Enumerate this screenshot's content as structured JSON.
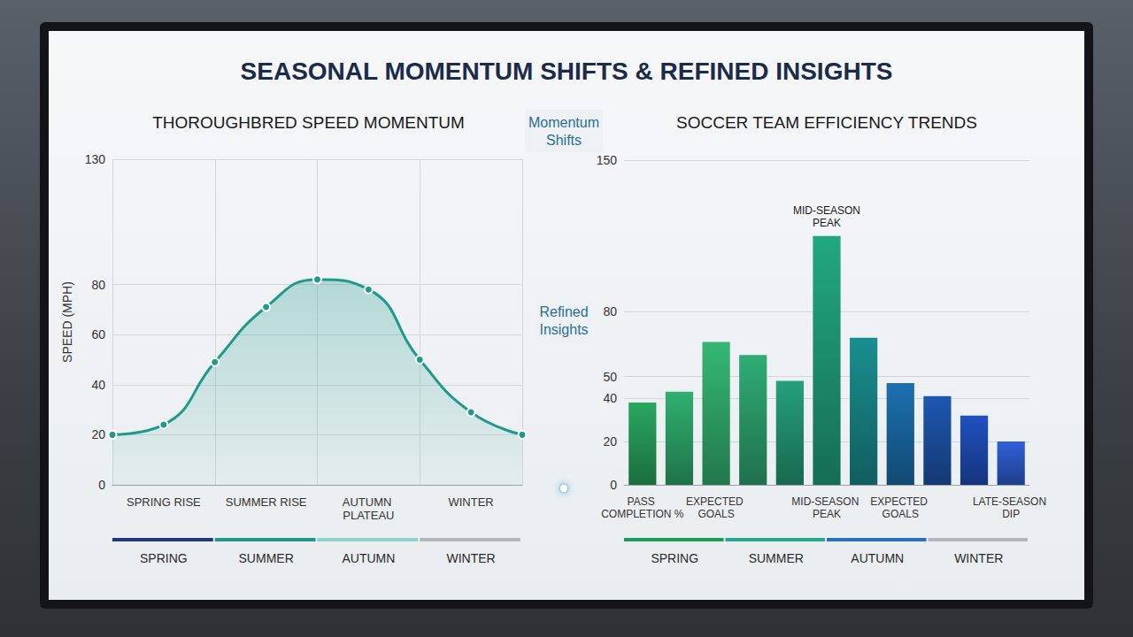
{
  "title": "SEASONAL MOMENTUM SHIFTS & REFINED INSIGHTS",
  "center_labels": [
    "Momentum Shifts",
    "Refined Insights"
  ],
  "chart_data": [
    {
      "type": "line",
      "title": "THOROUGHBRED SPEED MOMENTUM",
      "ylabel": "SPEED (MPH)",
      "categories": [
        null,
        "SPRING RISE",
        null,
        "SUMMER RISE",
        null,
        "AUTUMN PLATEAU",
        null,
        "WINTER",
        null
      ],
      "values": [
        20,
        24,
        49,
        71,
        82,
        78,
        50,
        29,
        20
      ],
      "color": "#1e9a8a",
      "marker": "circle",
      "ylim": [
        0,
        130
      ],
      "yticks": [
        0,
        20,
        40,
        60,
        80,
        130
      ],
      "grid": true,
      "season_labels": [
        "SPRING",
        "SUMMER",
        "AUTUMN",
        "WINTER"
      ]
    },
    {
      "type": "bar",
      "title": "SOCCER TEAM EFFICIENCY TRENDS",
      "categories": [
        "PASS COMPLETION %",
        null,
        "EXPECTED GOALS",
        null,
        null,
        "MID-SEASON PEAK",
        null,
        "EXPECTED GOALS",
        null,
        null,
        "LATE-SEASON DIP"
      ],
      "values": [
        38,
        43,
        66,
        60,
        48,
        115,
        68,
        47,
        41,
        32,
        20
      ],
      "colors": [
        "#2aa860",
        "#30b070",
        "#35b873",
        "#2fad75",
        "#25a07a",
        "#22a880",
        "#1a8f90",
        "#1c70b0",
        "#1e58b0",
        "#2050c0",
        "#3060d8"
      ],
      "ylim": [
        0,
        150
      ],
      "yticks": [
        0,
        20,
        40,
        50,
        80,
        150
      ],
      "grid": true,
      "annotations": [
        {
          "text": "MID-SEASON PEAK",
          "x": 5
        }
      ],
      "season_labels": [
        "SPRING",
        "SUMMER",
        "AUTUMN",
        "WINTER"
      ]
    }
  ]
}
